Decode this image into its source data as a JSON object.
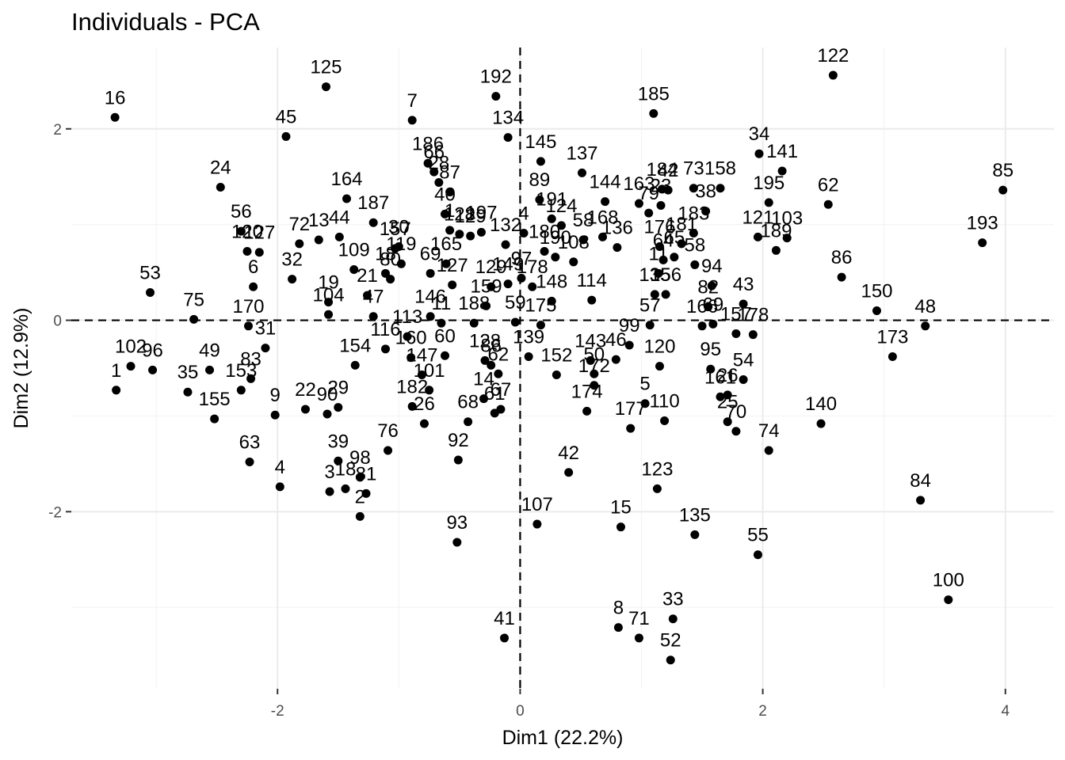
{
  "chart_data": {
    "type": "scatter",
    "title": "Individuals - PCA",
    "xlabel": "Dim1 (22.2%)",
    "ylabel": "Dim2 (12.9%)",
    "xlim": [
      -3.7,
      4.4
    ],
    "ylim": [
      -3.85,
      2.85
    ],
    "x_ticks": [
      -2,
      0,
      2,
      4
    ],
    "y_ticks": [
      -2,
      0,
      2
    ],
    "grid": true,
    "zero_lines": "dashed",
    "points": [
      {
        "label": "16",
        "x": -3.34,
        "y": 2.12
      },
      {
        "label": "125",
        "x": -1.6,
        "y": 2.44
      },
      {
        "label": "192",
        "x": -0.2,
        "y": 2.34
      },
      {
        "label": "122",
        "x": 2.58,
        "y": 2.56
      },
      {
        "label": "45",
        "x": -1.93,
        "y": 1.92
      },
      {
        "label": "7",
        "x": -0.89,
        "y": 2.09
      },
      {
        "label": "185",
        "x": 1.1,
        "y": 2.16
      },
      {
        "label": "134",
        "x": -0.1,
        "y": 1.91
      },
      {
        "label": "34",
        "x": 1.97,
        "y": 1.74
      },
      {
        "label": "186",
        "x": -0.76,
        "y": 1.64
      },
      {
        "label": "145",
        "x": 0.17,
        "y": 1.66
      },
      {
        "label": "141",
        "x": 2.16,
        "y": 1.56
      },
      {
        "label": "85",
        "x": 3.98,
        "y": 1.36
      },
      {
        "label": "24",
        "x": -2.47,
        "y": 1.39
      },
      {
        "label": "66",
        "x": -0.71,
        "y": 1.55
      },
      {
        "label": "137",
        "x": 0.51,
        "y": 1.54
      },
      {
        "label": "87",
        "x": -0.58,
        "y": 1.34
      },
      {
        "label": "28",
        "x": -0.67,
        "y": 1.44
      },
      {
        "label": "184",
        "x": 1.17,
        "y": 1.37
      },
      {
        "label": "73",
        "x": 1.43,
        "y": 1.38
      },
      {
        "label": "158",
        "x": 1.65,
        "y": 1.38
      },
      {
        "label": "164",
        "x": -1.43,
        "y": 1.27
      },
      {
        "label": "89",
        "x": 0.16,
        "y": 1.26
      },
      {
        "label": "144",
        "x": 0.7,
        "y": 1.24
      },
      {
        "label": "163",
        "x": 0.98,
        "y": 1.22
      },
      {
        "label": "23",
        "x": 1.16,
        "y": 1.2
      },
      {
        "label": "195",
        "x": 2.05,
        "y": 1.23
      },
      {
        "label": "62",
        "x": 2.54,
        "y": 1.21
      },
      {
        "label": "40",
        "x": -0.62,
        "y": 1.11
      },
      {
        "label": "187",
        "x": -1.21,
        "y": 1.02
      },
      {
        "label": "191",
        "x": 0.26,
        "y": 1.06
      },
      {
        "label": "79",
        "x": 1.06,
        "y": 1.12
      },
      {
        "label": "42",
        "x": 1.22,
        "y": 1.36
      },
      {
        "label": "38",
        "x": 1.53,
        "y": 1.14
      },
      {
        "label": "56",
        "x": -2.3,
        "y": 0.93
      },
      {
        "label": "72",
        "x": -1.82,
        "y": 0.8
      },
      {
        "label": "13",
        "x": -1.66,
        "y": 0.84
      },
      {
        "label": "44",
        "x": -1.49,
        "y": 0.87
      },
      {
        "label": "124",
        "x": 0.34,
        "y": 0.99
      },
      {
        "label": "58",
        "x": 0.52,
        "y": 0.84
      },
      {
        "label": "183",
        "x": 1.43,
        "y": 0.91
      },
      {
        "label": "121",
        "x": 1.96,
        "y": 0.87
      },
      {
        "label": "103",
        "x": 2.2,
        "y": 0.86
      },
      {
        "label": "193",
        "x": 3.81,
        "y": 0.81
      },
      {
        "label": "120",
        "x": -2.25,
        "y": 0.72
      },
      {
        "label": "127",
        "x": -2.15,
        "y": 0.71
      },
      {
        "label": "1",
        "x": -0.58,
        "y": 0.94
      },
      {
        "label": "128",
        "x": -0.5,
        "y": 0.9
      },
      {
        "label": "129",
        "x": -0.41,
        "y": 0.88
      },
      {
        "label": "197",
        "x": -0.32,
        "y": 0.92
      },
      {
        "label": "132",
        "x": -0.12,
        "y": 0.79
      },
      {
        "label": "157",
        "x": -1.03,
        "y": 0.75
      },
      {
        "label": "30",
        "x": -1.0,
        "y": 0.77
      },
      {
        "label": "4",
        "x": 0.03,
        "y": 0.91
      },
      {
        "label": "180",
        "x": 0.2,
        "y": 0.72
      },
      {
        "label": "190",
        "x": 0.29,
        "y": 0.66
      },
      {
        "label": "108",
        "x": 0.44,
        "y": 0.61
      },
      {
        "label": "168",
        "x": 0.68,
        "y": 0.87
      },
      {
        "label": "136",
        "x": 0.8,
        "y": 0.76
      },
      {
        "label": "176",
        "x": 1.15,
        "y": 0.77
      },
      {
        "label": "181",
        "x": 1.33,
        "y": 0.8
      },
      {
        "label": "65",
        "x": 1.27,
        "y": 0.66
      },
      {
        "label": "58",
        "x": 1.44,
        "y": 0.58
      },
      {
        "label": "189",
        "x": 2.11,
        "y": 0.73
      },
      {
        "label": "32",
        "x": -1.88,
        "y": 0.43
      },
      {
        "label": "109",
        "x": -1.37,
        "y": 0.53
      },
      {
        "label": "18",
        "x": -1.11,
        "y": 0.49
      },
      {
        "label": "119",
        "x": -0.98,
        "y": 0.59
      },
      {
        "label": "69",
        "x": -0.74,
        "y": 0.49
      },
      {
        "label": "165",
        "x": -0.61,
        "y": 0.59
      },
      {
        "label": "127",
        "x": -0.56,
        "y": 0.37
      },
      {
        "label": "11",
        "x": 1.14,
        "y": 0.49
      },
      {
        "label": "64",
        "x": 1.18,
        "y": 0.63
      },
      {
        "label": "53",
        "x": -3.05,
        "y": 0.29
      },
      {
        "label": "6",
        "x": -2.2,
        "y": 0.35
      },
      {
        "label": "19",
        "x": -1.58,
        "y": 0.19
      },
      {
        "label": "21",
        "x": -1.26,
        "y": 0.26
      },
      {
        "label": "80",
        "x": -1.07,
        "y": 0.43
      },
      {
        "label": "129",
        "x": -0.24,
        "y": 0.35
      },
      {
        "label": "149",
        "x": -0.1,
        "y": 0.38
      },
      {
        "label": "97",
        "x": 0.01,
        "y": 0.44
      },
      {
        "label": "178",
        "x": 0.1,
        "y": 0.35
      },
      {
        "label": "148",
        "x": 0.26,
        "y": 0.2
      },
      {
        "label": "114",
        "x": 0.59,
        "y": 0.21
      },
      {
        "label": "135",
        "x": 1.11,
        "y": 0.27
      },
      {
        "label": "156",
        "x": 1.2,
        "y": 0.27
      },
      {
        "label": "94",
        "x": 1.58,
        "y": 0.36
      },
      {
        "label": "86",
        "x": 2.65,
        "y": 0.45
      },
      {
        "label": "75",
        "x": -2.69,
        "y": 0.01
      },
      {
        "label": "104",
        "x": -1.58,
        "y": 0.06
      },
      {
        "label": "47",
        "x": -1.21,
        "y": 0.04
      },
      {
        "label": "146",
        "x": -0.74,
        "y": 0.04
      },
      {
        "label": "11",
        "x": -0.65,
        "y": -0.03
      },
      {
        "label": "188",
        "x": -0.38,
        "y": -0.03
      },
      {
        "label": "159",
        "x": -0.28,
        "y": 0.15
      },
      {
        "label": "59",
        "x": -0.04,
        "y": -0.02
      },
      {
        "label": "175",
        "x": 0.17,
        "y": -0.05
      },
      {
        "label": "57",
        "x": 1.07,
        "y": -0.05
      },
      {
        "label": "166",
        "x": 1.5,
        "y": -0.06
      },
      {
        "label": "82",
        "x": 1.55,
        "y": 0.14
      },
      {
        "label": "69",
        "x": 1.59,
        "y": -0.04
      },
      {
        "label": "43",
        "x": 1.84,
        "y": 0.17
      },
      {
        "label": "150",
        "x": 2.94,
        "y": 0.1
      },
      {
        "label": "48",
        "x": 3.34,
        "y": -0.06
      },
      {
        "label": "170",
        "x": -2.24,
        "y": -0.06
      },
      {
        "label": "31",
        "x": -2.1,
        "y": -0.29
      },
      {
        "label": "116",
        "x": -1.11,
        "y": -0.3
      },
      {
        "label": "113",
        "x": -0.93,
        "y": -0.17
      },
      {
        "label": "160",
        "x": -0.9,
        "y": -0.39
      },
      {
        "label": "60",
        "x": -0.62,
        "y": -0.37
      },
      {
        "label": "128",
        "x": -0.29,
        "y": -0.42
      },
      {
        "label": "139",
        "x": 0.07,
        "y": -0.38
      },
      {
        "label": "152",
        "x": 0.3,
        "y": -0.57
      },
      {
        "label": "143",
        "x": 0.58,
        "y": -0.42
      },
      {
        "label": "50",
        "x": 0.61,
        "y": -0.56
      },
      {
        "label": "46",
        "x": 0.79,
        "y": -0.41
      },
      {
        "label": "99",
        "x": 0.9,
        "y": -0.26
      },
      {
        "label": "120",
        "x": 1.15,
        "y": -0.48
      },
      {
        "label": "157",
        "x": 1.78,
        "y": -0.14
      },
      {
        "label": "178",
        "x": 1.92,
        "y": -0.15
      },
      {
        "label": "173",
        "x": 3.07,
        "y": -0.38
      },
      {
        "label": "102",
        "x": -3.21,
        "y": -0.48
      },
      {
        "label": "96",
        "x": -3.03,
        "y": -0.52
      },
      {
        "label": "1",
        "x": -3.33,
        "y": -0.73
      },
      {
        "label": "35",
        "x": -2.74,
        "y": -0.75
      },
      {
        "label": "49",
        "x": -2.56,
        "y": -0.52
      },
      {
        "label": "153",
        "x": -2.3,
        "y": -0.73
      },
      {
        "label": "83",
        "x": -2.22,
        "y": -0.61
      },
      {
        "label": "155",
        "x": -2.52,
        "y": -1.03
      },
      {
        "label": "154",
        "x": -1.36,
        "y": -0.47
      },
      {
        "label": "147",
        "x": -0.81,
        "y": -0.57
      },
      {
        "label": "101",
        "x": -0.75,
        "y": -0.73
      },
      {
        "label": "182",
        "x": -0.89,
        "y": -0.9
      },
      {
        "label": "26",
        "x": -0.79,
        "y": -1.08
      },
      {
        "label": "86",
        "x": -0.24,
        "y": -0.47
      },
      {
        "label": "62",
        "x": -0.18,
        "y": -0.56
      },
      {
        "label": "14",
        "x": -0.3,
        "y": -0.82
      },
      {
        "label": "67",
        "x": -0.16,
        "y": -0.93
      },
      {
        "label": "61",
        "x": -0.21,
        "y": -0.97
      },
      {
        "label": "68",
        "x": -0.43,
        "y": -1.06
      },
      {
        "label": "172",
        "x": 0.61,
        "y": -0.68
      },
      {
        "label": "174",
        "x": 0.55,
        "y": -0.95
      },
      {
        "label": "5",
        "x": 1.03,
        "y": -0.87
      },
      {
        "label": "177",
        "x": 0.91,
        "y": -1.13
      },
      {
        "label": "110",
        "x": 1.19,
        "y": -1.05
      },
      {
        "label": "95",
        "x": 1.57,
        "y": -0.51
      },
      {
        "label": "26",
        "x": 1.71,
        "y": -0.78
      },
      {
        "label": "54",
        "x": 1.84,
        "y": -0.62
      },
      {
        "label": "161",
        "x": 1.65,
        "y": -0.8
      },
      {
        "label": "25",
        "x": 1.71,
        "y": -1.06
      },
      {
        "label": "70",
        "x": 1.78,
        "y": -1.16
      },
      {
        "label": "140",
        "x": 2.48,
        "y": -1.08
      },
      {
        "label": "9",
        "x": -2.02,
        "y": -0.99
      },
      {
        "label": "22",
        "x": -1.77,
        "y": -0.93
      },
      {
        "label": "90",
        "x": -1.59,
        "y": -0.98
      },
      {
        "label": "29",
        "x": -1.5,
        "y": -0.91
      },
      {
        "label": "76",
        "x": -1.09,
        "y": -1.36
      },
      {
        "label": "92",
        "x": -0.51,
        "y": -1.46
      },
      {
        "label": "74",
        "x": 2.05,
        "y": -1.36
      },
      {
        "label": "63",
        "x": -2.23,
        "y": -1.48
      },
      {
        "label": "39",
        "x": -1.5,
        "y": -1.47
      },
      {
        "label": "98",
        "x": -1.32,
        "y": -1.64
      },
      {
        "label": "4",
        "x": -1.98,
        "y": -1.74
      },
      {
        "label": "3",
        "x": -1.57,
        "y": -1.79
      },
      {
        "label": "18",
        "x": -1.44,
        "y": -1.76
      },
      {
        "label": "81",
        "x": -1.27,
        "y": -1.81
      },
      {
        "label": "2",
        "x": -1.32,
        "y": -2.05
      },
      {
        "label": "42",
        "x": 0.4,
        "y": -1.59
      },
      {
        "label": "123",
        "x": 1.13,
        "y": -1.76
      },
      {
        "label": "84",
        "x": 3.3,
        "y": -1.88
      },
      {
        "label": "107",
        "x": 0.14,
        "y": -2.13
      },
      {
        "label": "15",
        "x": 0.83,
        "y": -2.16
      },
      {
        "label": "135",
        "x": 1.44,
        "y": -2.24
      },
      {
        "label": "93",
        "x": -0.52,
        "y": -2.32
      },
      {
        "label": "55",
        "x": 1.96,
        "y": -2.45
      },
      {
        "label": "100",
        "x": 3.53,
        "y": -2.92
      },
      {
        "label": "33",
        "x": 1.26,
        "y": -3.12
      },
      {
        "label": "8",
        "x": 0.81,
        "y": -3.21
      },
      {
        "label": "71",
        "x": 0.98,
        "y": -3.32
      },
      {
        "label": "41",
        "x": -0.13,
        "y": -3.32
      },
      {
        "label": "52",
        "x": 1.24,
        "y": -3.55
      }
    ]
  }
}
